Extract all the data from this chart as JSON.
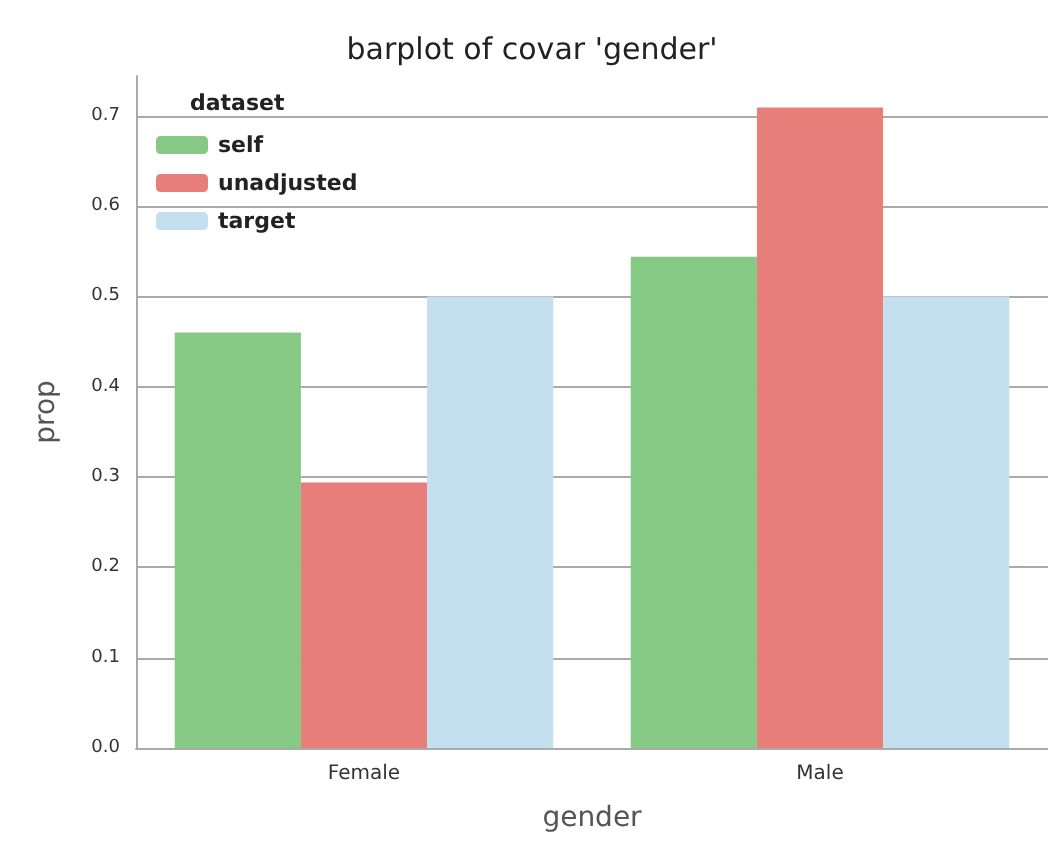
{
  "chart_data": {
    "type": "bar",
    "title": "barplot of covar 'gender'",
    "xlabel": "gender",
    "ylabel": "prop",
    "legend_title": "dataset",
    "categories": [
      "Female",
      "Male"
    ],
    "series": [
      {
        "name": "self",
        "color": "#86c984",
        "values": [
          0.46,
          0.544
        ]
      },
      {
        "name": "unadjusted",
        "color": "#e87e7a",
        "values": [
          0.294,
          0.709
        ]
      },
      {
        "name": "target",
        "color": "#c4dfed",
        "values": [
          0.5,
          0.5
        ]
      }
    ],
    "ylim": [
      0,
      0.744
    ],
    "yticks": [
      {
        "value": 0,
        "label": "0.0"
      },
      0.1,
      0.2,
      0.3,
      0.4,
      0.5,
      0.6,
      0.7
    ],
    "grid": "y",
    "legend": "top left"
  }
}
